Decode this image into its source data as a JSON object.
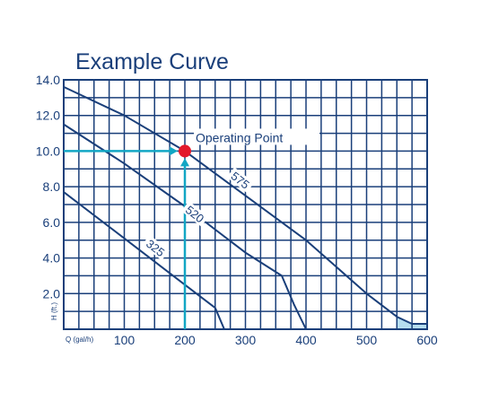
{
  "chart_data": {
    "type": "line",
    "title": "Example Curve",
    "xlabel": "Q (gal/h)",
    "ylabel": "H (ft.)",
    "xlim": [
      0,
      600
    ],
    "ylim": [
      0,
      14
    ],
    "x_ticks": [
      {
        "value": 100,
        "label": "100"
      },
      {
        "value": 200,
        "label": "200"
      },
      {
        "value": 300,
        "label": "300"
      },
      {
        "value": 400,
        "label": "400"
      },
      {
        "value": 500,
        "label": "500"
      },
      {
        "value": 600,
        "label": "600"
      }
    ],
    "y_ticks": [
      {
        "value": 2,
        "label": "2.0"
      },
      {
        "value": 4,
        "label": "4.0"
      },
      {
        "value": 6,
        "label": "6.0"
      },
      {
        "value": 8,
        "label": "8.0"
      },
      {
        "value": 10,
        "label": "10.0"
      },
      {
        "value": 12,
        "label": "12.0"
      },
      {
        "value": 14,
        "label": "14.0"
      }
    ],
    "grid": true,
    "series": [
      {
        "name": "575",
        "label_at": [
          290,
          8.3
        ],
        "points": [
          [
            0,
            13.6
          ],
          [
            100,
            12.0
          ],
          [
            200,
            10.0
          ],
          [
            300,
            7.5
          ],
          [
            400,
            5.0
          ],
          [
            450,
            3.5
          ],
          [
            500,
            2.0
          ],
          [
            550,
            0.7
          ],
          [
            575,
            0.3
          ],
          [
            600,
            0.3
          ]
        ]
      },
      {
        "name": "520",
        "label_at": [
          215,
          6.4
        ],
        "points": [
          [
            0,
            11.5
          ],
          [
            100,
            9.3
          ],
          [
            200,
            6.9
          ],
          [
            300,
            4.3
          ],
          [
            360,
            3.0
          ],
          [
            380,
            1.4
          ],
          [
            400,
            0.0
          ]
        ]
      },
      {
        "name": "325",
        "label_at": [
          150,
          4.5
        ],
        "points": [
          [
            0,
            7.7
          ],
          [
            100,
            5.1
          ],
          [
            200,
            2.5
          ],
          [
            250,
            1.2
          ],
          [
            265,
            0.0
          ]
        ]
      }
    ],
    "operating_point": {
      "label": "Operating Point",
      "x": 200,
      "y": 10
    },
    "colors": {
      "border": "#1a3f7a",
      "grid": "#1a3f7a",
      "curve": "#1a3f7a",
      "guide": "#12a6c4",
      "point": "#e3192b",
      "text": "#1a3f7a",
      "shade": "#a9d8ec"
    }
  }
}
